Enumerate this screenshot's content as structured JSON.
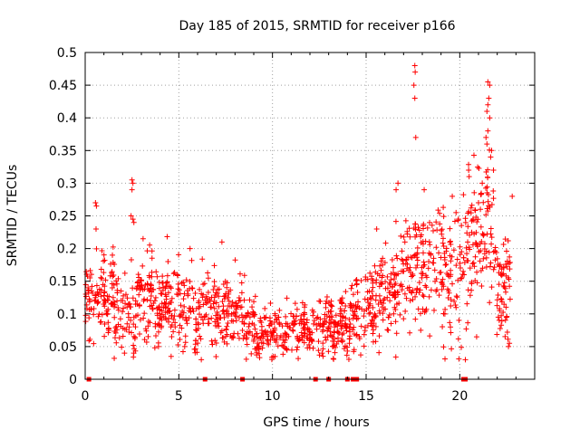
{
  "chart_data": {
    "type": "scatter",
    "title": "Day 185 of 2015, SRMTID for receiver p166",
    "xlabel": "GPS time / hours",
    "ylabel": "SRMTID / TECUs",
    "xlim": [
      0,
      24
    ],
    "ylim": [
      0,
      0.5
    ],
    "x_ticks": [
      0,
      5,
      10,
      15,
      20
    ],
    "x_tick_labels": [
      "0",
      "5",
      "10",
      "15",
      "20"
    ],
    "y_ticks": [
      0,
      0.05,
      0.1,
      0.15,
      0.2,
      0.25,
      0.3,
      0.35,
      0.4,
      0.45,
      0.5
    ],
    "y_tick_labels": [
      "0",
      "0.05",
      "0.1",
      "0.15",
      "0.2",
      "0.25",
      "0.3",
      "0.35",
      "0.4",
      "0.45",
      "0.5"
    ],
    "grid": true,
    "marker": "+",
    "color": "#ff0000",
    "zero_markers_x": [
      0.2,
      6.4,
      8.4,
      12.3,
      13.0,
      14.0,
      14.3,
      14.5,
      20.2,
      20.3
    ],
    "trend": [
      [
        0.0,
        0.11
      ],
      [
        0.5,
        0.14
      ],
      [
        1.0,
        0.13
      ],
      [
        1.5,
        0.11
      ],
      [
        2.0,
        0.1
      ],
      [
        2.5,
        0.11
      ],
      [
        3.0,
        0.12
      ],
      [
        3.5,
        0.12
      ],
      [
        4.0,
        0.11
      ],
      [
        4.5,
        0.12
      ],
      [
        5.0,
        0.11
      ],
      [
        5.5,
        0.11
      ],
      [
        6.0,
        0.1
      ],
      [
        6.5,
        0.11
      ],
      [
        7.0,
        0.1
      ],
      [
        7.5,
        0.1
      ],
      [
        8.0,
        0.11
      ],
      [
        8.5,
        0.1
      ],
      [
        9.0,
        0.075
      ],
      [
        9.5,
        0.07
      ],
      [
        10.0,
        0.065
      ],
      [
        10.5,
        0.07
      ],
      [
        11.0,
        0.075
      ],
      [
        11.5,
        0.08
      ],
      [
        12.0,
        0.08
      ],
      [
        12.5,
        0.08
      ],
      [
        13.0,
        0.08
      ],
      [
        13.5,
        0.08
      ],
      [
        14.0,
        0.085
      ],
      [
        14.5,
        0.1
      ],
      [
        15.0,
        0.11
      ],
      [
        15.5,
        0.13
      ],
      [
        16.0,
        0.14
      ],
      [
        16.5,
        0.14
      ],
      [
        17.0,
        0.15
      ],
      [
        17.5,
        0.17
      ],
      [
        18.0,
        0.17
      ],
      [
        18.5,
        0.18
      ],
      [
        19.0,
        0.17
      ],
      [
        19.5,
        0.16
      ],
      [
        20.0,
        0.17
      ],
      [
        20.5,
        0.2
      ],
      [
        21.0,
        0.22
      ],
      [
        21.5,
        0.24
      ],
      [
        22.0,
        0.14
      ],
      [
        22.5,
        0.13
      ],
      [
        22.7,
        0.14
      ]
    ],
    "spread": [
      [
        0.0,
        0.025
      ],
      [
        2.0,
        0.035
      ],
      [
        4.0,
        0.03
      ],
      [
        6.0,
        0.03
      ],
      [
        8.5,
        0.025
      ],
      [
        9.0,
        0.02
      ],
      [
        12.0,
        0.02
      ],
      [
        14.5,
        0.025
      ],
      [
        15.0,
        0.03
      ],
      [
        17.0,
        0.045
      ],
      [
        19.0,
        0.05
      ],
      [
        20.5,
        0.06
      ],
      [
        21.5,
        0.06
      ],
      [
        22.0,
        0.04
      ],
      [
        22.7,
        0.04
      ]
    ],
    "point_count": 1500,
    "outliers": [
      [
        0.55,
        0.27
      ],
      [
        0.6,
        0.265
      ],
      [
        0.58,
        0.23
      ],
      [
        2.5,
        0.305
      ],
      [
        2.55,
        0.3
      ],
      [
        2.5,
        0.29
      ],
      [
        2.45,
        0.25
      ],
      [
        2.55,
        0.245
      ],
      [
        2.6,
        0.24
      ],
      [
        17.6,
        0.48
      ],
      [
        17.62,
        0.47
      ],
      [
        17.55,
        0.45
      ],
      [
        17.6,
        0.43
      ],
      [
        17.65,
        0.37
      ],
      [
        16.7,
        0.3
      ],
      [
        16.6,
        0.29
      ],
      [
        18.1,
        0.29
      ],
      [
        19.6,
        0.28
      ],
      [
        20.5,
        0.31
      ],
      [
        21.5,
        0.455
      ],
      [
        21.6,
        0.45
      ],
      [
        21.55,
        0.43
      ],
      [
        21.5,
        0.42
      ],
      [
        21.45,
        0.41
      ],
      [
        21.6,
        0.4
      ],
      [
        21.5,
        0.38
      ],
      [
        21.4,
        0.37
      ],
      [
        21.45,
        0.36
      ],
      [
        21.7,
        0.35
      ],
      [
        21.65,
        0.34
      ],
      [
        21.2,
        0.3
      ],
      [
        21.8,
        0.32
      ],
      [
        22.8,
        0.28
      ],
      [
        21.0,
        0.27
      ],
      [
        21.1,
        0.26
      ],
      [
        22.6,
        0.05
      ],
      [
        22.65,
        0.055
      ],
      [
        20.3,
        0.03
      ],
      [
        20.9,
        0.065
      ],
      [
        6.2,
        0.03
      ],
      [
        7.3,
        0.21
      ],
      [
        5.6,
        0.2
      ]
    ]
  }
}
